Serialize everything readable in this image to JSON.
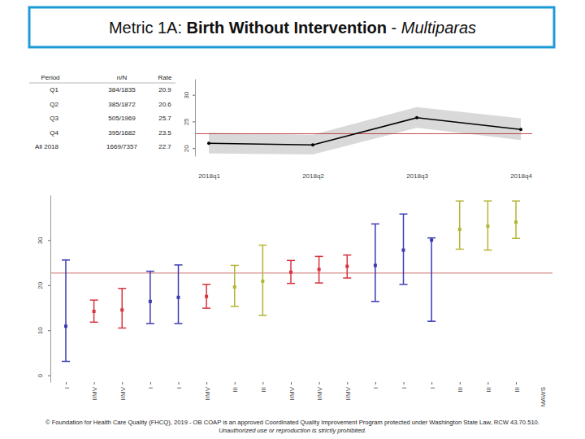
{
  "title": {
    "prefix": "Metric 1A:",
    "main": "Birth Without Intervention",
    "separator": "-",
    "subtitle": "Multiparas"
  },
  "table": {
    "columns": [
      "Period",
      "n/N",
      "Rate"
    ],
    "rows": [
      [
        "Q1",
        "384/1835",
        20.9
      ],
      [
        "Q2",
        "385/1872",
        20.6
      ],
      [
        "Q3",
        "505/1969",
        25.7
      ],
      [
        "Q4",
        "395/1682",
        23.5
      ],
      [
        "All 2018",
        "1669/7357",
        22.7
      ]
    ]
  },
  "chart_data": [
    {
      "type": "line",
      "categories": [
        "2018q1",
        "2018q2",
        "2018q3",
        "2018q4"
      ],
      "values": [
        20.9,
        20.6,
        25.7,
        23.5
      ],
      "lower": [
        19.0,
        18.8,
        23.8,
        21.5
      ],
      "upper": [
        22.9,
        22.5,
        27.7,
        25.6
      ],
      "reference": 22.7,
      "color": "#000000",
      "ylim": [
        18.5,
        33
      ],
      "yticks": [
        20,
        25,
        30
      ]
    },
    {
      "type": "errorbar",
      "categories": [
        "I",
        "IIMV",
        "IIMV",
        "I",
        "I",
        "IIMV",
        "III",
        "III",
        "IIMV",
        "IIMV",
        "IIMV",
        "I",
        "I",
        "I",
        "III",
        "III",
        "III"
      ],
      "values": [
        10.9,
        14.2,
        14.5,
        16.4,
        17.3,
        17.5,
        19.6,
        20.9,
        22.9,
        23.5,
        24.2,
        24.4,
        27.8,
        30.0,
        32.4,
        33.1,
        34.0
      ],
      "lower": [
        3.1,
        11.8,
        10.5,
        11.5,
        11.5,
        14.9,
        15.3,
        13.3,
        20.4,
        20.5,
        21.6,
        16.4,
        20.2,
        12.0,
        28.0,
        27.8,
        30.4
      ],
      "upper": [
        25.6,
        16.7,
        19.3,
        23.1,
        24.5,
        20.2,
        24.4,
        28.9,
        25.5,
        26.4,
        26.7,
        33.6,
        35.8,
        30.5,
        38.7,
        38.7,
        38.7
      ],
      "colors": [
        "#3b3bb3",
        "#d8343f",
        "#d8343f",
        "#3b3bb3",
        "#3b3bb3",
        "#d8343f",
        "#b5b536",
        "#b5b536",
        "#d8343f",
        "#d8343f",
        "#d8343f",
        "#3b3bb3",
        "#3b3bb3",
        "#3b3bb3",
        "#b5b536",
        "#b5b536",
        "#b5b536"
      ],
      "reference": 22.7,
      "xlabel": "MAWS",
      "ylim": [
        -1.5,
        40
      ],
      "yticks": [
        0,
        10,
        20,
        30
      ]
    }
  ],
  "footer": [
    "© Foundation for Health Care Quality (FHCQ), 2019 - OB COAP is an approved Coordinated Quality Improvement Program protected under Washington State Law, RCW 43.70.510.",
    "Unauthorized use or reproduction is strictly prohibited."
  ]
}
